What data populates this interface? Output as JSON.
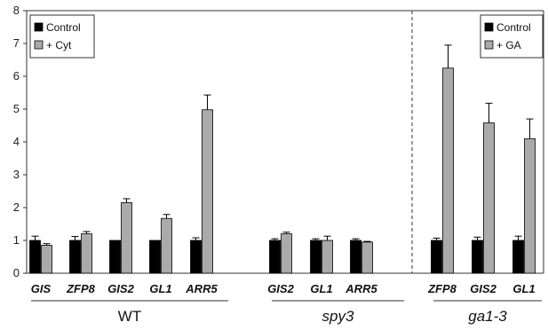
{
  "chart_data": {
    "type": "bar",
    "ylim": [
      0,
      8
    ],
    "yticks": [
      "0",
      "1",
      "2",
      "3",
      "4",
      "5",
      "6",
      "7",
      "8"
    ],
    "groups": [
      {
        "label": "WT",
        "italic": false,
        "categories": [
          "GIS",
          "ZFP8",
          "GIS2",
          "GL1",
          "ARR5"
        ],
        "series": [
          {
            "name": "Control",
            "values": [
              1.0,
              1.0,
              1.0,
              1.0,
              1.0
            ],
            "errors": [
              0.13,
              0.12,
              0.0,
              0.0,
              0.08
            ]
          },
          {
            "name": "+ Cyt",
            "values": [
              0.85,
              1.2,
              2.15,
              1.67,
              4.98
            ],
            "errors": [
              0.05,
              0.07,
              0.12,
              0.12,
              0.45
            ]
          }
        ],
        "legend_series": [
          "Control",
          "+ Cyt"
        ]
      },
      {
        "label": "spy3",
        "italic": true,
        "categories": [
          "GIS2",
          "GL1",
          "ARR5"
        ],
        "series": [
          {
            "name": "Control",
            "values": [
              1.0,
              1.0,
              1.0
            ],
            "errors": [
              0.05,
              0.05,
              0.05
            ]
          },
          {
            "name": "+ Cyt",
            "values": [
              1.2,
              1.0,
              0.95
            ],
            "errors": [
              0.05,
              0.13,
              0.02
            ]
          }
        ]
      },
      {
        "label": "ga1-3",
        "italic": true,
        "categories": [
          "ZFP8",
          "GIS2",
          "GL1"
        ],
        "series": [
          {
            "name": "Control",
            "values": [
              1.0,
              1.0,
              1.0
            ],
            "errors": [
              0.07,
              0.1,
              0.13
            ]
          },
          {
            "name": "+ GA",
            "values": [
              6.25,
              4.58,
              4.1
            ],
            "errors": [
              0.7,
              0.6,
              0.6
            ]
          }
        ],
        "legend_series": [
          "Control",
          "+ GA"
        ]
      }
    ],
    "colors": {
      "control": "#000000",
      "treatment": "#aaaaaa"
    },
    "divider": "dashed line between spy3 and ga1-3",
    "grid": false
  }
}
